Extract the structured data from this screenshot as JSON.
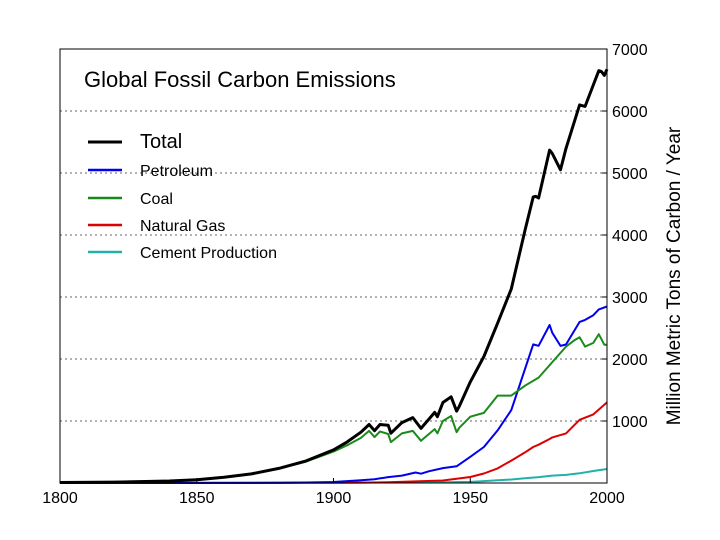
{
  "chart_data": {
    "type": "line",
    "title": "Global Fossil Carbon Emissions",
    "xlabel": "",
    "ylabel": "Million Metric Tons of Carbon / Year",
    "xlim": [
      1800,
      2000
    ],
    "ylim": [
      0,
      7000
    ],
    "x_ticks": [
      1800,
      1850,
      1900,
      1950,
      2000
    ],
    "y_ticks": [
      1000,
      2000,
      3000,
      4000,
      5000,
      6000,
      7000
    ],
    "y_axis_side": "right",
    "grid": "horizontal dotted",
    "legend_position": "top-left",
    "series": [
      {
        "name": "Total",
        "color": "#000000",
        "x": [
          1800,
          1820,
          1840,
          1850,
          1860,
          1870,
          1880,
          1890,
          1900,
          1905,
          1910,
          1913,
          1915,
          1917,
          1920,
          1921,
          1925,
          1929,
          1932,
          1937,
          1938,
          1940,
          1943,
          1945,
          1946,
          1950,
          1955,
          1960,
          1965,
          1970,
          1973,
          1974,
          1975,
          1979,
          1980,
          1983,
          1985,
          1990,
          1992,
          1995,
          1997,
          1998,
          1999,
          2000
        ],
        "values": [
          8,
          14,
          33,
          54,
          92,
          147,
          236,
          356,
          534,
          663,
          819,
          943,
          844,
          943,
          932,
          803,
          975,
          1055,
          881,
          1139,
          1070,
          1299,
          1391,
          1160,
          1237,
          1630,
          2040,
          2577,
          3130,
          4076,
          4613,
          4623,
          4596,
          5369,
          5315,
          5052,
          5396,
          6098,
          6074,
          6420,
          6650,
          6636,
          6574,
          6672
        ]
      },
      {
        "name": "Petroleum",
        "color": "#0000ee",
        "x": [
          1800,
          1870,
          1880,
          1890,
          1900,
          1910,
          1915,
          1920,
          1925,
          1930,
          1932,
          1935,
          1940,
          1945,
          1950,
          1955,
          1960,
          1965,
          1970,
          1973,
          1974,
          1975,
          1979,
          1980,
          1983,
          1985,
          1990,
          1992,
          1995,
          1997,
          2000
        ],
        "values": [
          0,
          1,
          3,
          8,
          16,
          43,
          61,
          95,
          120,
          170,
          150,
          190,
          240,
          270,
          423,
          580,
          849,
          1176,
          1838,
          2235,
          2225,
          2213,
          2548,
          2422,
          2212,
          2234,
          2599,
          2630,
          2706,
          2800,
          2846
        ]
      },
      {
        "name": "Coal",
        "color": "#1a8a1a",
        "x": [
          1800,
          1820,
          1840,
          1850,
          1860,
          1870,
          1880,
          1890,
          1900,
          1905,
          1910,
          1913,
          1915,
          1917,
          1920,
          1921,
          1925,
          1929,
          1932,
          1937,
          1938,
          1940,
          1943,
          1945,
          1946,
          1950,
          1955,
          1960,
          1965,
          1970,
          1975,
          1980,
          1985,
          1988,
          1990,
          1992,
          1995,
          1997,
          1999,
          2000
        ],
        "values": [
          8,
          14,
          33,
          54,
          91,
          146,
          232,
          345,
          507,
          610,
          728,
          840,
          740,
          830,
          790,
          660,
          800,
          840,
          680,
          870,
          800,
          1000,
          1080,
          820,
          890,
          1070,
          1130,
          1410,
          1410,
          1570,
          1700,
          1950,
          2200,
          2300,
          2350,
          2200,
          2260,
          2400,
          2230,
          2230
        ]
      },
      {
        "name": "Natural Gas",
        "color": "#dd0000",
        "x": [
          1800,
          1880,
          1890,
          1900,
          1910,
          1920,
          1930,
          1940,
          1950,
          1955,
          1960,
          1965,
          1970,
          1973,
          1975,
          1979,
          1980,
          1985,
          1990,
          1995,
          2000
        ],
        "values": [
          0,
          1,
          5,
          3,
          7,
          12,
          26,
          40,
          97,
          154,
          235,
          361,
          493,
          581,
          618,
          710,
          735,
          800,
          1019,
          1106,
          1300
        ]
      },
      {
        "name": "Cement Production",
        "color": "#20b2aa",
        "x": [
          1800,
          1920,
          1930,
          1940,
          1950,
          1955,
          1960,
          1965,
          1970,
          1975,
          1980,
          1985,
          1990,
          1995,
          2000
        ],
        "values": [
          0,
          8,
          10,
          12,
          18,
          30,
          43,
          57,
          78,
          95,
          120,
          131,
          157,
          193,
          226
        ]
      }
    ]
  }
}
